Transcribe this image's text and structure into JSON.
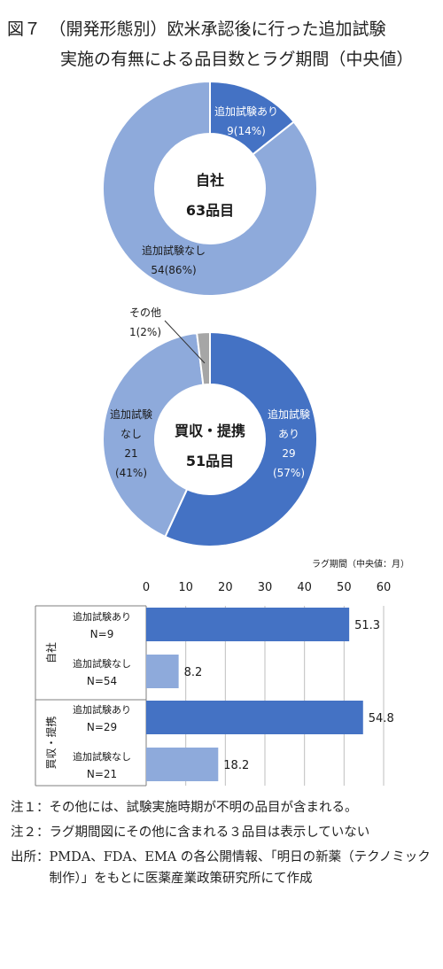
{
  "title": {
    "line1": "図７　（開発形態別）欧米承認後に行った追加試験",
    "line2": "実施の有無による品目数とラグ期間（中央値）"
  },
  "colors": {
    "dark": "#4472c4",
    "light": "#8eaadb",
    "gray": "#a6a6a6"
  },
  "chart_data": [
    {
      "type": "pie",
      "center_label": [
        "自社",
        "63品目"
      ],
      "slices": [
        {
          "label": "追加試験あり",
          "count": 9,
          "percent": 14,
          "label_text": [
            "追加試験あり",
            "9(14%)"
          ],
          "color": "#4472c4"
        },
        {
          "label": "追加試験なし",
          "count": 54,
          "percent": 86,
          "label_text": [
            "追加試験なし",
            "54(86%)"
          ],
          "color": "#8eaadb"
        }
      ]
    },
    {
      "type": "pie",
      "center_label": [
        "買収・提携",
        "51品目"
      ],
      "slices": [
        {
          "label": "追加試験あり",
          "count": 29,
          "percent": 57,
          "label_text": [
            "追加試験",
            "あり",
            "29",
            "(57%)"
          ],
          "color": "#4472c4"
        },
        {
          "label": "追加試験なし",
          "count": 21,
          "percent": 41,
          "label_text": [
            "追加試験",
            "なし",
            "21",
            "(41%)"
          ],
          "color": "#8eaadb"
        },
        {
          "label": "その他",
          "count": 1,
          "percent": 2,
          "label_text": [
            "その他",
            "1(2%)"
          ],
          "color": "#a6a6a6"
        }
      ]
    },
    {
      "type": "bar",
      "orientation": "horizontal",
      "unit_label": "ラグ期間（中央値：月）",
      "xlim": [
        0,
        60
      ],
      "xticks": [
        "0",
        "10",
        "20",
        "30",
        "40",
        "50",
        "60"
      ],
      "grid": true,
      "groups": [
        {
          "name": "自社",
          "rows": [
            {
              "label": [
                "追加試験あり",
                "N=9"
              ],
              "value": 51.3,
              "value_label": "51.3",
              "color": "#4472c4"
            },
            {
              "label": [
                "追加試験なし",
                "N=54"
              ],
              "value": 8.2,
              "value_label": "8.2",
              "color": "#8eaadb"
            }
          ]
        },
        {
          "name": "買収・提携",
          "rows": [
            {
              "label": [
                "追加試験あり",
                "N=29"
              ],
              "value": 54.8,
              "value_label": "54.8",
              "color": "#4472c4"
            },
            {
              "label": [
                "追加試験なし",
                "N=21"
              ],
              "value": 18.2,
              "value_label": "18.2",
              "color": "#8eaadb"
            }
          ]
        }
      ]
    }
  ],
  "notes": [
    {
      "label": "注１：",
      "text": "その他には、試験実施時期が不明の品目が含まれる。"
    },
    {
      "label": "注２：",
      "text": "ラグ期間図にその他に含まれる３品目は表示していない"
    },
    {
      "label": "出所：",
      "text": "PMDA、FDA、EMA の各公開情報、「明日の新薬（テクノミック制作）」をもとに医薬産業政策研究所にて作成"
    }
  ]
}
